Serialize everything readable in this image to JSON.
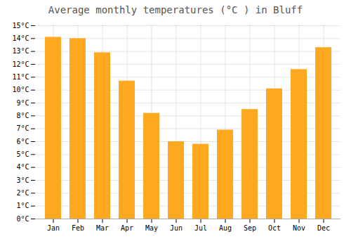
{
  "chart_data": {
    "type": "bar",
    "title": "Average monthly temperatures (°C ) in Bluff",
    "categories": [
      "Jan",
      "Feb",
      "Mar",
      "Apr",
      "May",
      "Jun",
      "Jul",
      "Aug",
      "Sep",
      "Oct",
      "Nov",
      "Dec"
    ],
    "values": [
      14.1,
      14.0,
      12.9,
      10.7,
      8.2,
      6.0,
      5.8,
      6.9,
      8.5,
      10.1,
      11.6,
      13.3
    ],
    "color": "#FFA920",
    "ylim": [
      0,
      15
    ],
    "yticks": [
      {
        "value": 0,
        "label": "0°C"
      },
      {
        "value": 1,
        "label": "1°C"
      },
      {
        "value": 2,
        "label": "2°C"
      },
      {
        "value": 3,
        "label": "3°C"
      },
      {
        "value": 4,
        "label": "4°C"
      },
      {
        "value": 5,
        "label": "5°C"
      },
      {
        "value": 6,
        "label": "6°C"
      },
      {
        "value": 7,
        "label": "7°C"
      },
      {
        "value": 8,
        "label": "8°C"
      },
      {
        "value": 9,
        "label": "9°C"
      },
      {
        "value": 10,
        "label": "10°C"
      },
      {
        "value": 11,
        "label": "11°C"
      },
      {
        "value": 12,
        "label": "12°C"
      },
      {
        "value": 13,
        "label": "13°C"
      },
      {
        "value": 14,
        "label": "14°C"
      },
      {
        "value": 15,
        "label": "15°C"
      }
    ],
    "grid": true
  }
}
